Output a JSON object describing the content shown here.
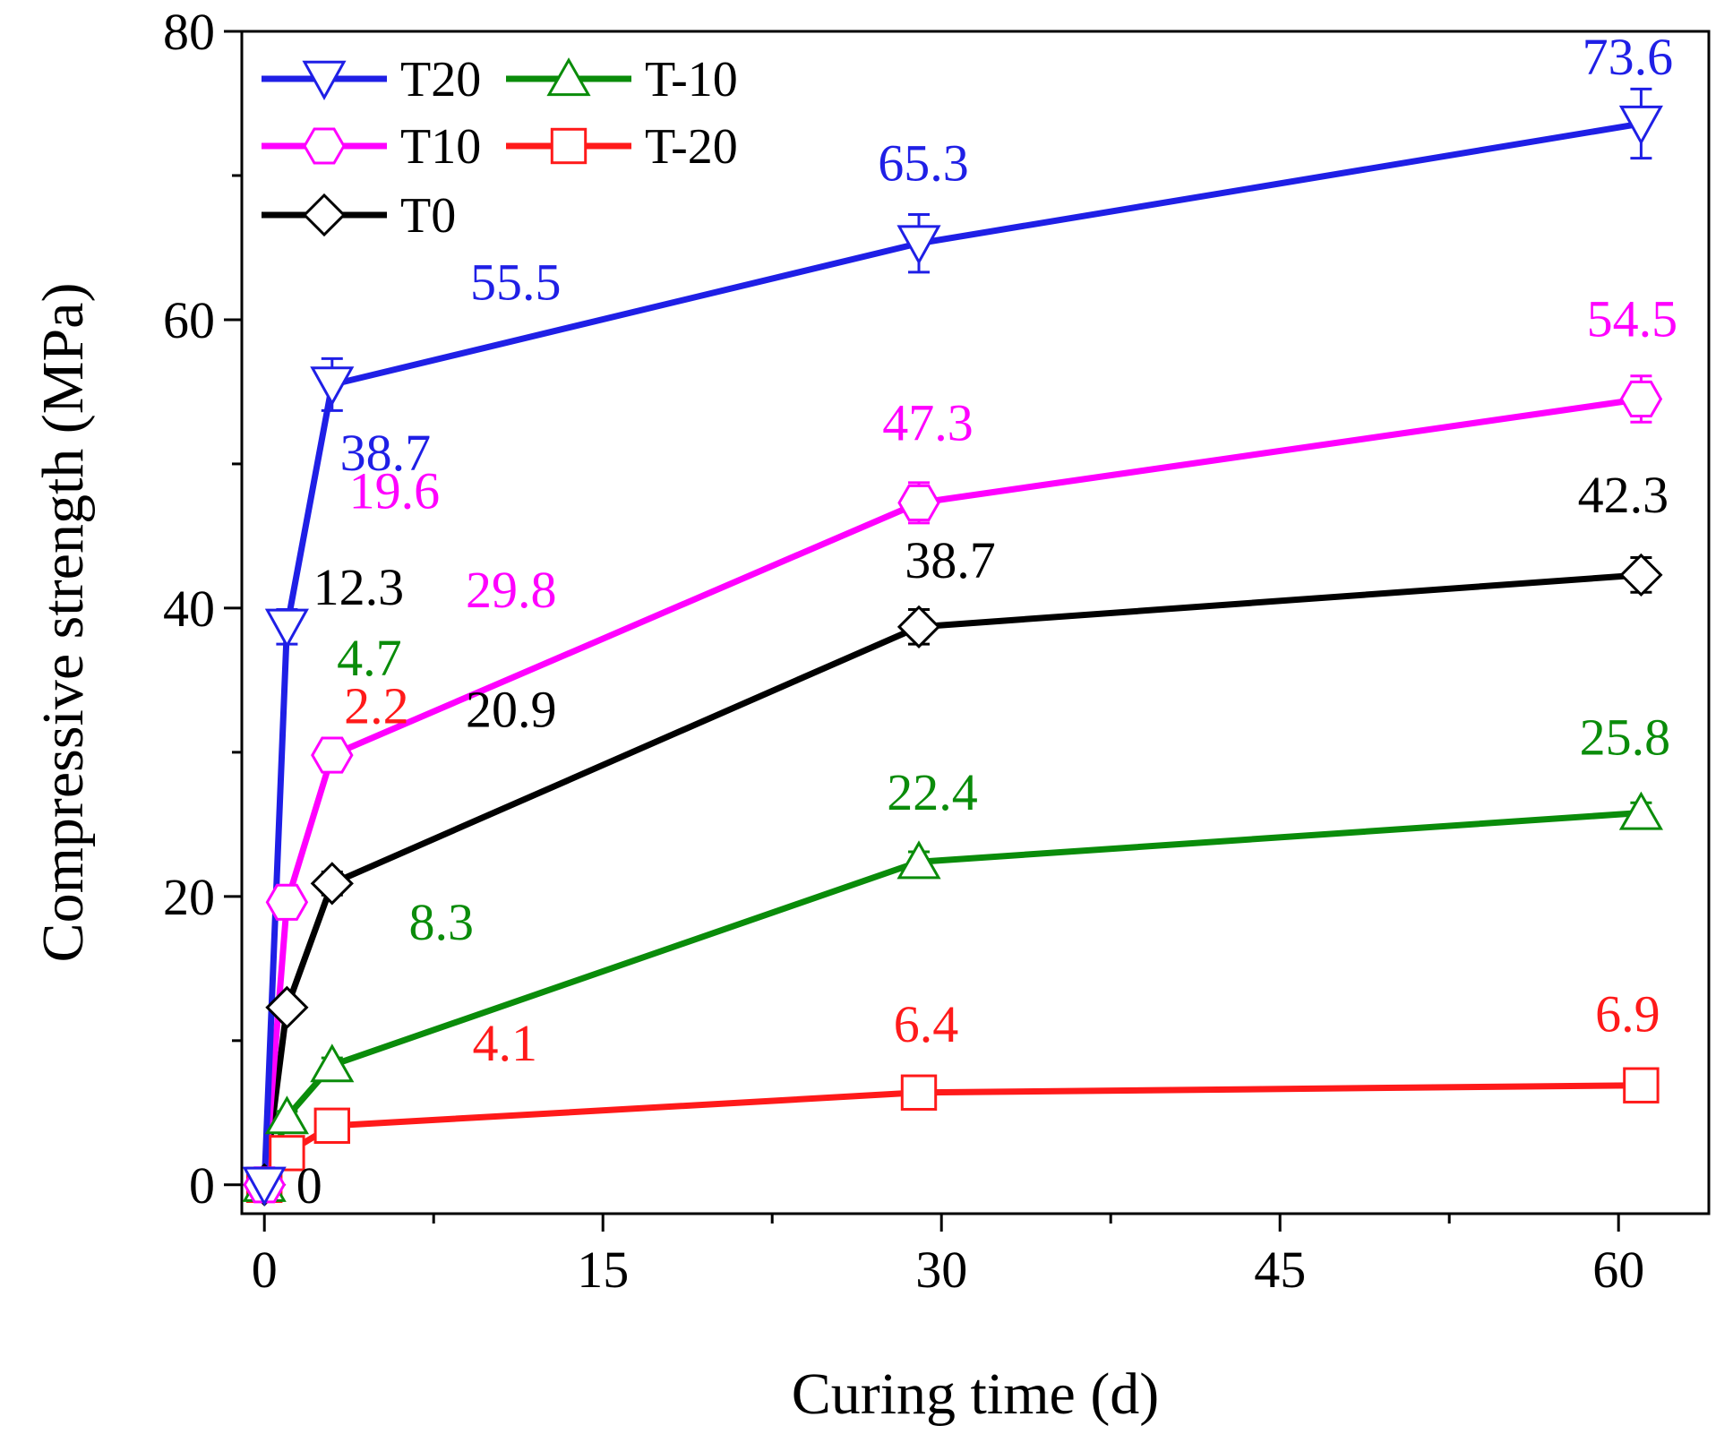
{
  "chart_data": {
    "type": "line",
    "title": "",
    "xlabel": "Curing time (d)",
    "ylabel": "Compressive strength  (MPa)",
    "xlim": [
      0,
      64
    ],
    "ylim": [
      0,
      80
    ],
    "xticks": [
      0,
      15,
      30,
      45,
      60
    ],
    "yticks": [
      0,
      20,
      40,
      60,
      80
    ],
    "x": [
      0,
      1,
      3,
      29,
      61
    ],
    "legend_position": "top-left",
    "series": [
      {
        "name": "T20",
        "color": "#1f1fe6",
        "marker": "triangle-down",
        "values": [
          0,
          38.7,
          55.5,
          65.3,
          73.6
        ],
        "errors": [
          0,
          1.2,
          1.8,
          2.0,
          2.4
        ],
        "labels": [
          "0",
          "38.7",
          "55.5",
          "65.3",
          "73.6"
        ]
      },
      {
        "name": "T10",
        "color": "#ff00ff",
        "marker": "hexagon",
        "values": [
          0,
          19.6,
          29.8,
          47.3,
          54.5
        ],
        "errors": [
          0,
          0.8,
          1.0,
          1.4,
          1.6
        ],
        "labels": [
          "0",
          "19.6",
          "29.8",
          "47.3",
          "54.5"
        ]
      },
      {
        "name": "T0",
        "color": "#000000",
        "marker": "diamond",
        "values": [
          0,
          12.3,
          20.9,
          38.7,
          42.3
        ],
        "errors": [
          0,
          0.6,
          0.8,
          1.2,
          1.2
        ],
        "labels": [
          "0",
          "12.3",
          "20.9",
          "38.7",
          "42.3"
        ]
      },
      {
        "name": "T-10",
        "color": "#0a8c0a",
        "marker": "triangle-up",
        "values": [
          0,
          4.7,
          8.3,
          22.4,
          25.8
        ],
        "errors": [
          0,
          0.4,
          0.5,
          0.7,
          0.7
        ],
        "labels": [
          "0",
          "4.7",
          "8.3",
          "22.4",
          "25.8"
        ]
      },
      {
        "name": "T-20",
        "color": "#ff1a1a",
        "marker": "square",
        "values": [
          0,
          2.2,
          4.1,
          6.4,
          6.9
        ],
        "errors": [
          0,
          0.3,
          0.3,
          0.4,
          0.4
        ],
        "labels": [
          "0",
          "2.2",
          "4.1",
          "6.4",
          "6.9"
        ]
      }
    ]
  }
}
